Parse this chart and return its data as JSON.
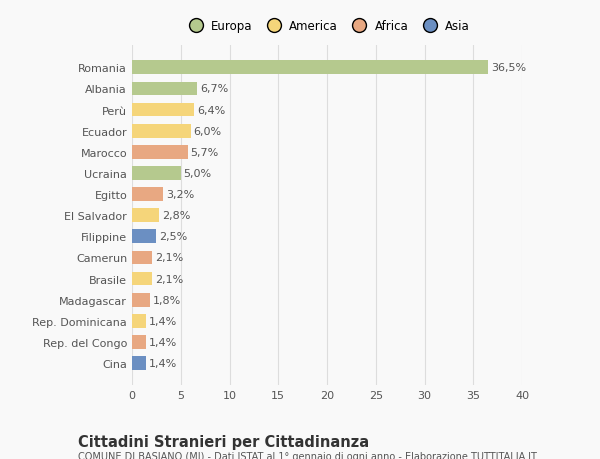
{
  "categories": [
    "Romania",
    "Albania",
    "Perù",
    "Ecuador",
    "Marocco",
    "Ucraina",
    "Egitto",
    "El Salvador",
    "Filippine",
    "Camerun",
    "Brasile",
    "Madagascar",
    "Rep. Dominicana",
    "Rep. del Congo",
    "Cina"
  ],
  "values": [
    36.5,
    6.7,
    6.4,
    6.0,
    5.7,
    5.0,
    3.2,
    2.8,
    2.5,
    2.1,
    2.1,
    1.8,
    1.4,
    1.4,
    1.4
  ],
  "labels": [
    "36,5%",
    "6,7%",
    "6,4%",
    "6,0%",
    "5,7%",
    "5,0%",
    "3,2%",
    "2,8%",
    "2,5%",
    "2,1%",
    "2,1%",
    "1,8%",
    "1,4%",
    "1,4%",
    "1,4%"
  ],
  "colors": [
    "#b5c98e",
    "#b5c98e",
    "#f5d57a",
    "#f5d57a",
    "#e8a882",
    "#b5c98e",
    "#e8a882",
    "#f5d57a",
    "#6b8fc2",
    "#e8a882",
    "#f5d57a",
    "#e8a882",
    "#f5d57a",
    "#e8a882",
    "#6b8fc2"
  ],
  "legend_labels": [
    "Europa",
    "America",
    "Africa",
    "Asia"
  ],
  "legend_colors": [
    "#b5c98e",
    "#f5d57a",
    "#e8a882",
    "#6b8fc2"
  ],
  "xlim": [
    0,
    40
  ],
  "xticks": [
    0,
    5,
    10,
    15,
    20,
    25,
    30,
    35,
    40
  ],
  "title": "Cittadini Stranieri per Cittadinanza",
  "subtitle": "COMUNE DI BASIANO (MI) - Dati ISTAT al 1° gennaio di ogni anno - Elaborazione TUTTITALIA.IT",
  "background_color": "#f9f9f9",
  "bar_height": 0.65,
  "grid_color": "#dddddd",
  "label_fontsize": 8,
  "tick_fontsize": 8,
  "title_fontsize": 10.5,
  "subtitle_fontsize": 7
}
